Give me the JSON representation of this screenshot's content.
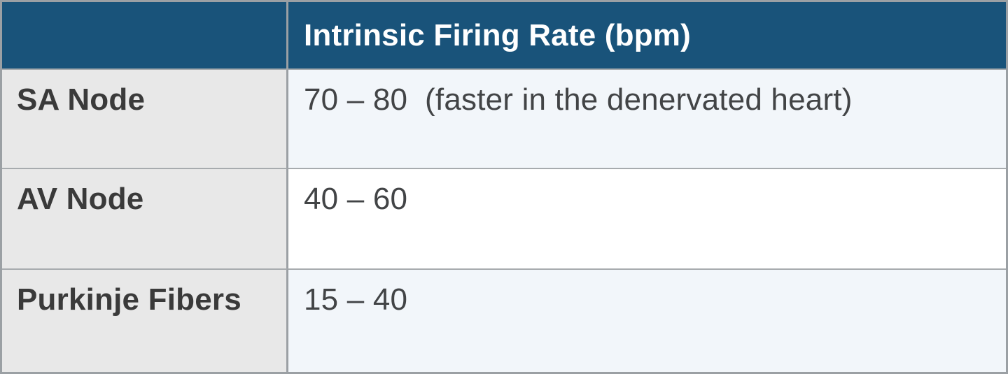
{
  "chart_data": {
    "type": "table",
    "title": "",
    "columns": [
      "",
      "Intrinsic Firing Rate (bpm)"
    ],
    "rows": [
      [
        "SA Node",
        "70 – 80  (faster in the denervated heart)"
      ],
      [
        "AV Node",
        "40 – 60"
      ],
      [
        "Purkinje Fibers",
        "15 – 40"
      ]
    ],
    "notes": "Header row spans both columns in dark blue; left column is the pacemaker site label; right column is the intrinsic firing rate range in beats per minute."
  },
  "table": {
    "header": {
      "label_cell": "",
      "value_cell": "Intrinsic Firing Rate (bpm)"
    },
    "rows": [
      {
        "label": "SA Node",
        "value": "70 – 80  (faster in the denervated heart)"
      },
      {
        "label": "AV Node",
        "value": "40 – 60"
      },
      {
        "label": "Purkinje Fibers",
        "value": "15 – 40"
      }
    ],
    "colors": {
      "header_bg": "#19537a",
      "header_text": "#ffffff",
      "label_bg": "#e8e8e8",
      "label_text": "#3a3a3a",
      "value_bg_tint": "#f2f6fa",
      "value_bg_plain": "#ffffff",
      "value_text": "#424446",
      "border": "#9ba0a4",
      "border_light": "#a7abae"
    }
  }
}
